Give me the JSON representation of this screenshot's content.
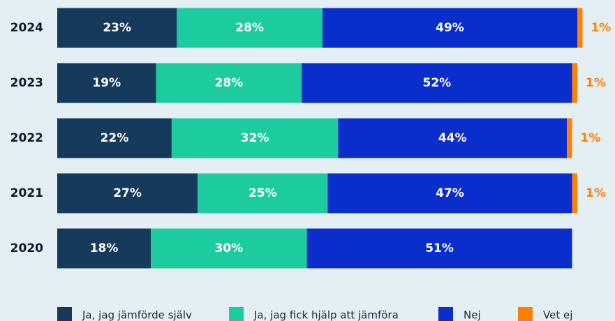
{
  "chart_data": {
    "type": "stacked_bar_horizontal",
    "categories": [
      "2024",
      "2023",
      "2022",
      "2021",
      "2020"
    ],
    "series": [
      {
        "name": "Ja, jag jämförde själv",
        "color": "#163a5c",
        "values": [
          23,
          19,
          22,
          27,
          18
        ],
        "value_labels": [
          "23%",
          "19%",
          "22%",
          "27%",
          "18%"
        ]
      },
      {
        "name": "Ja, jag fick hjälp att jämföra",
        "color": "#1ccb9e",
        "values": [
          28,
          28,
          32,
          25,
          30
        ],
        "value_labels": [
          "28%",
          "28%",
          "32%",
          "25%",
          "30%"
        ]
      },
      {
        "name": "Nej",
        "color": "#0a2ecc",
        "values": [
          49,
          52,
          44,
          47,
          51
        ],
        "value_labels": [
          "49%",
          "52%",
          "44%",
          "47%",
          "51%"
        ]
      },
      {
        "name": "Vet ej",
        "color": "#ff8000",
        "values": [
          1,
          1,
          1,
          1,
          null
        ],
        "value_labels": [
          "1%",
          "1%",
          "1%",
          "1%",
          null
        ]
      }
    ]
  }
}
